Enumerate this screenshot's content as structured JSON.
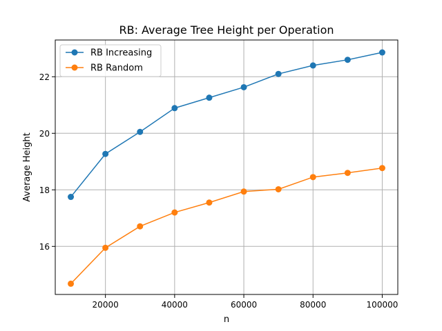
{
  "chart_data": {
    "type": "line",
    "title": "RB: Average Tree Height per Operation",
    "xlabel": "n",
    "ylabel": "Average Height",
    "x": [
      10000,
      20000,
      30000,
      40000,
      50000,
      60000,
      70000,
      80000,
      90000,
      100000
    ],
    "series": [
      {
        "name": "RB Increasing",
        "color": "#1f77b4",
        "values": [
          17.75,
          19.27,
          20.05,
          20.89,
          21.26,
          21.63,
          22.1,
          22.4,
          22.6,
          22.86
        ]
      },
      {
        "name": "RB Random",
        "color": "#ff7f0e",
        "values": [
          14.68,
          15.95,
          16.71,
          17.2,
          17.55,
          17.94,
          18.02,
          18.45,
          18.6,
          18.77
        ]
      }
    ],
    "xlim": [
      5500,
      104500
    ],
    "ylim": [
      14.3,
      23.3
    ],
    "xticks": [
      20000,
      40000,
      60000,
      80000,
      100000
    ],
    "yticks": [
      16,
      18,
      20,
      22
    ],
    "xtick_labels": [
      "20000",
      "40000",
      "60000",
      "80000",
      "100000"
    ],
    "ytick_labels": [
      "16",
      "18",
      "20",
      "22"
    ],
    "grid": true,
    "legend_position": "top-left"
  }
}
